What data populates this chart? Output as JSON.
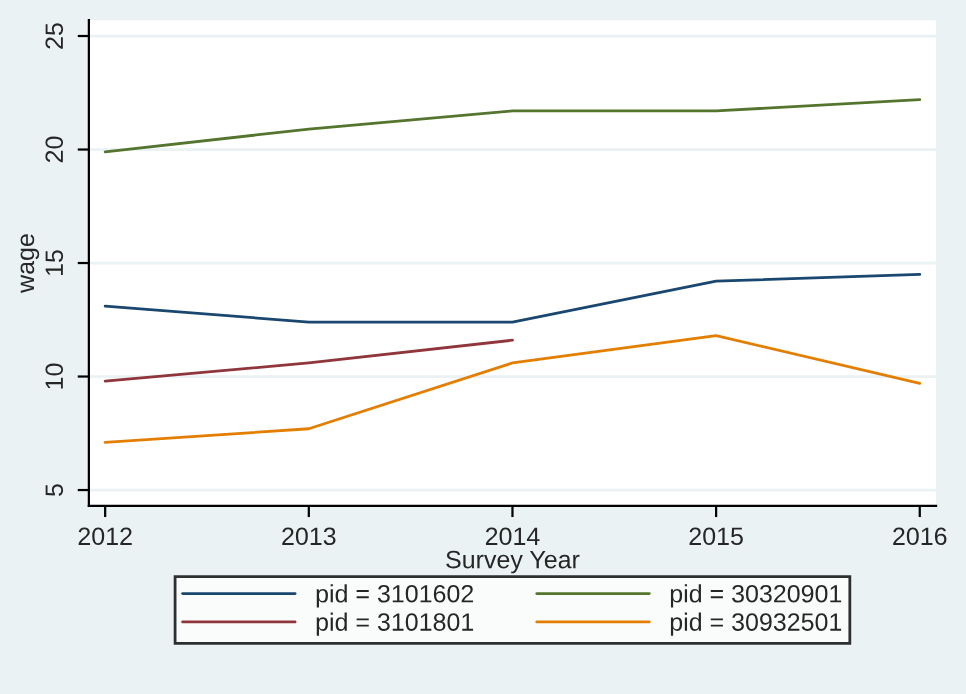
{
  "chart_data": {
    "type": "line",
    "xlabel": "Survey Year",
    "ylabel": "wage",
    "x": [
      2012,
      2013,
      2014,
      2015,
      2016
    ],
    "series": [
      {
        "name": "pid = 3101602",
        "color": "#1a476f",
        "values": [
          13.1,
          12.4,
          12.4,
          14.2,
          14.5
        ]
      },
      {
        "name": "pid = 3101801",
        "color": "#90353b",
        "values": [
          9.8,
          10.6,
          11.6,
          null,
          null
        ]
      },
      {
        "name": "pid = 30320901",
        "color": "#55752f",
        "values": [
          19.9,
          20.9,
          21.7,
          21.7,
          22.2
        ]
      },
      {
        "name": "pid = 30932501",
        "color": "#e37e00",
        "values": [
          7.1,
          7.7,
          10.6,
          11.8,
          9.7
        ]
      }
    ],
    "xlim": [
      2011.92,
      2016.08
    ],
    "xticks": [
      2012,
      2013,
      2014,
      2015,
      2016
    ],
    "ylim": [
      4.3,
      25.7
    ],
    "yticks": [
      5,
      10,
      15,
      20,
      25
    ],
    "grid": "y",
    "legend": "bottom",
    "marker": "none",
    "line_style": "solid"
  }
}
